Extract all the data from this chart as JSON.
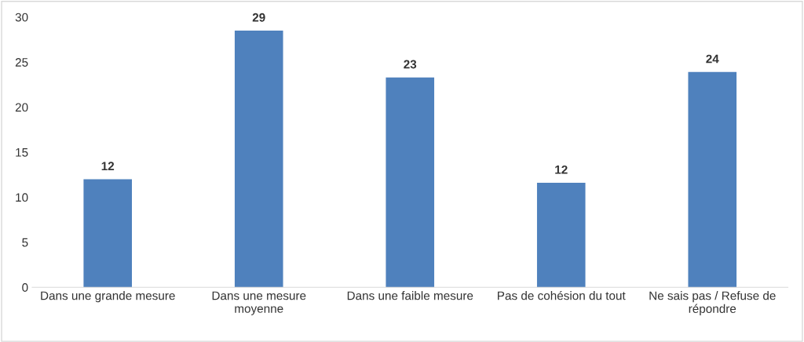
{
  "chart_data": {
    "type": "bar",
    "categories": [
      "Dans une grande mesure",
      "Dans une mesure\nmoyenne",
      "Dans une faible mesure",
      "Pas de cohésion du tout",
      "Ne sais pas / Refuse de\nrépondre"
    ],
    "values": [
      12,
      28.5,
      23.3,
      11.6,
      23.9
    ],
    "value_labels": [
      "12",
      "29",
      "23",
      "12",
      "24"
    ],
    "color": "#4f81bd",
    "ylim": [
      0,
      30
    ],
    "yticks": [
      0,
      5,
      10,
      15,
      20,
      25,
      30
    ],
    "grid": false,
    "legend": false
  }
}
